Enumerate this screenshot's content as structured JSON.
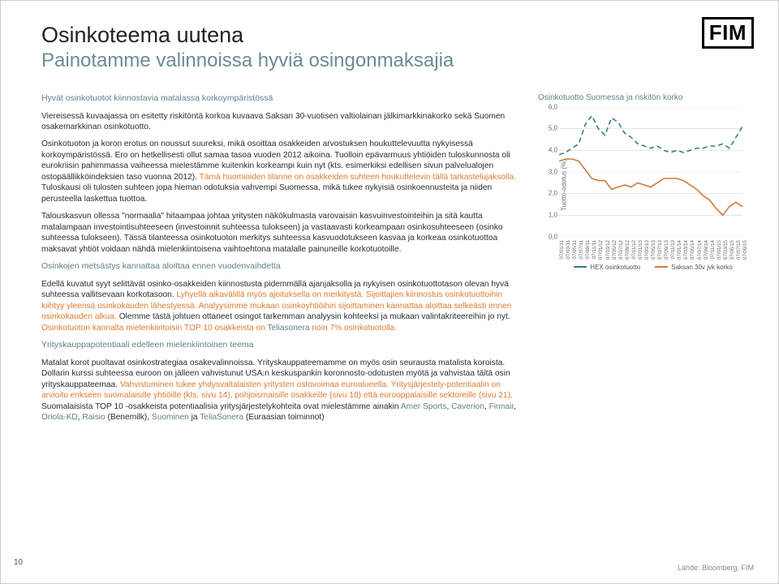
{
  "page_number": "10",
  "logo_text": "FIM",
  "title": "Osinkoteema uutena",
  "subtitle": "Painotamme valinnoissa hyviä osingonmaksajia",
  "lead": "Hyvät osinkotuotot kiinnostavia matalassa korkoympäristössä",
  "p1": "Viereisessä kuvaajassa on esitetty riskitöntä korkoa kuvaava Saksan 30-vuotisen valtiolainan jälkimarkkinakorko sekä Suomen osakemarkkinan osinkotuotto.",
  "p2a": "Osinkotuoton ja koron erotus on noussut suureksi, mikä osoittaa osakkeiden arvostuksen houkuttelevuutta nykyisessä korkoympäristössä. Ero on hetkellisesti ollut samaa tasoa vuoden 2012 aikoina. Tuolloin epävarmuus yhtiöiden tuloskunnosta oli eurokriisin pahimmassa vaiheessa mielestämme kuitenkin korkeampi kuin nyt (kts. esimerkiksi edellisen sivun palvelualojen ostopäällikköindeksien taso vuonna 2012). ",
  "p2b": "Tämä huomioiden tilanne on osakkeiden suhteen houkuttelevin tällä tarkastelujaksolla.",
  "p2c": " Tuloskausi oli tulosten suhteen jopa hieman odotuksia vahvempi Suomessa, mikä tukee nykyisiä osinkoennusteita ja niiden perusteella laskettua tuottoa.",
  "p3": "Talouskasvun ollessa \"normaalia\" hitaampaa johtaa yritysten näkökulmasta varovaisiin kasvuinvestointeihin ja sitä kautta matalampaan investointisuhteeseen (investoinnit suhteessa tulokseen) ja vastaavasti korkeampaan osinkosuhteeseen (osinko suhteessa tulokseen). Tässä tilanteessa osinkotuoton merkitys suhteessa kasvuodotukseen kasvaa ja korkeaa osinkotuottoa maksavat yhtiöt voidaan nähdä mielenkiintoisena vaihtoehtona matalalle painuneille korkotuotoille.",
  "h4": "Osinkojen metsästys kannattaa aloittaa ennen vuodenvaihdetta",
  "p4a": "Edellä kuvatut syyt selittävät osinko-osakkeiden kiinnostusta pidemmällä ajanjaksolla ja nykyisen osinkotuottotason olevan hyvä suhteessa vallitsevaan korkotasoon. ",
  "p4b": "Lyhyellä aikavälillä myös ajoituksella on merkitystä. Sijoittajien kiinnostus osinkotuottoihin kiihtyy yleensä osinkokauden lähestyessä. Analyysimme mukaan osinkoyhtiöihin sijoittaminen kannattaa aloittaa selkeästi ennen osinkokauden alkua.",
  "p4c": " Olemme tästä johtuen ottaneet osingot tarkemman analyysin kohteeksi ja mukaan valintakriteereihin jo nyt. ",
  "p4d": "Osinkotuoton kannalta mielenkiintoisin TOP 10 osakkeista on ",
  "p4e": "Teliasonera",
  "p4f": " noin 7% osinkotuotolla.",
  "h5": "Yrityskauppapotentiaali edelleen mielenkiintoinen teema",
  "p5a": "Matalat korot puoltavat osinkostrategiaa osakevalinnoissa. Yrityskauppateemamme on myös osin seurausta matalista koroista. Dollarin kurssi suhteessa euroon on jälleen vahvistunut USA:n keskuspankin koronnosto-odotusten myötä ja vahvistaa täitä osin yrityskauppateemaa. ",
  "p5b": "Vahvistuminen tukee yhdysvaltalaisten yritysten ostovoimaa euroalueella. Yritysjärjestely-potentiaalin on arvioitu erikseen suomalaisille yhtiöille (kts. sivu 14), pohjoismaisille osakkeille (sivu 18) että eurooppalaisille sektoreille (sivu 21).",
  "p5c": " Suomalaisista TOP 10 -osakkeista potentiaalisia yritysjärjestelykohteita ovat mielestämme ainakin ",
  "co1": "Amer Sports",
  "sep": ", ",
  "co2": "Caverion",
  "co3": "Finnair",
  "co4": "Oriola-KD",
  "co5": "Raisio",
  "co5x": " (Benemilk), ",
  "co6": "Suominen",
  "and": " ja ",
  "co7": "TeliaSonera",
  "co7x": " (Euraasian toiminnot)",
  "source": "Lähde: Bloomberg, FIM",
  "chart": {
    "title": "Osinkotuotto Suomessa ja riskitön korko",
    "ylabel": "Tuotto-odotus (%)",
    "ylim": [
      0,
      6
    ],
    "ytick_step": 1.0,
    "y_tick_labels": [
      "0,0",
      "1,0",
      "2,0",
      "3,0",
      "4,0",
      "5,0",
      "6,0"
    ],
    "x_labels": [
      "07/01/11",
      "07/03/11",
      "07/05/11",
      "07/07/11",
      "07/09/11",
      "07/11/11",
      "07/01/12",
      "07/03/12",
      "07/05/12",
      "07/07/12",
      "07/09/12",
      "07/11/12",
      "07/01/13",
      "07/03/13",
      "07/05/13",
      "07/07/13",
      "07/09/13",
      "07/11/13",
      "07/01/14",
      "07/03/14",
      "07/05/14",
      "07/07/14",
      "07/09/14",
      "07/11/14",
      "07/01/15",
      "07/03/15",
      "07/05/15",
      "07/07/15",
      "07/09/15"
    ],
    "series": [
      {
        "name": "HEX osinkotuotto",
        "color": "#3b7c88",
        "dash": "6 4",
        "values": [
          3.8,
          3.9,
          4.1,
          4.3,
          5.2,
          5.6,
          5.0,
          4.7,
          5.5,
          5.3,
          4.8,
          4.6,
          4.3,
          4.2,
          4.1,
          4.2,
          4.0,
          3.9,
          4.0,
          3.9,
          4.0,
          4.1,
          4.1,
          4.2,
          4.2,
          4.3,
          4.1,
          4.6,
          5.1
        ]
      },
      {
        "name": "Saksan 30v jvk korko",
        "color": "#d07a3a",
        "dash": "",
        "values": [
          3.5,
          3.6,
          3.6,
          3.5,
          3.1,
          2.7,
          2.6,
          2.6,
          2.2,
          2.3,
          2.4,
          2.3,
          2.5,
          2.4,
          2.3,
          2.5,
          2.7,
          2.7,
          2.7,
          2.6,
          2.4,
          2.2,
          1.9,
          1.7,
          1.3,
          1.0,
          1.4,
          1.6,
          1.4
        ]
      }
    ],
    "legend": {
      "a": "HEX osinkotuotto",
      "b": "Saksan 30v jvk korko"
    }
  }
}
